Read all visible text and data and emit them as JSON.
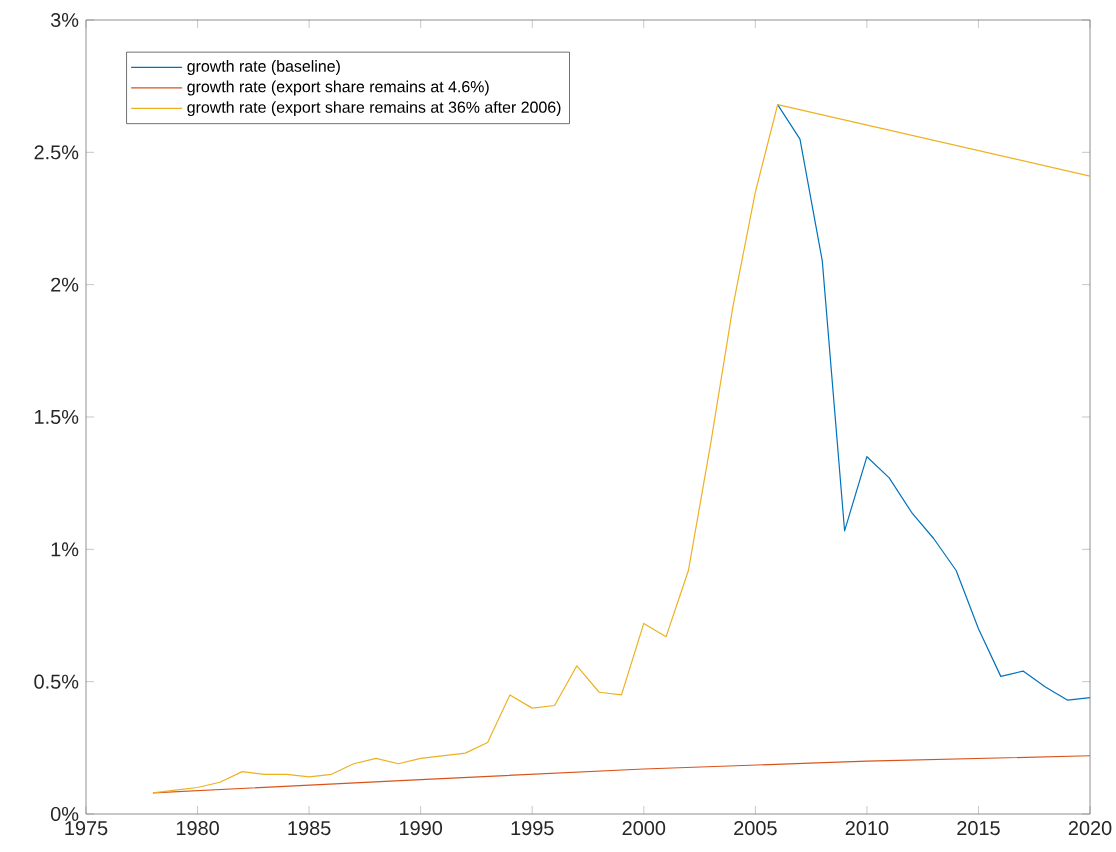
{
  "chart_data": {
    "type": "line",
    "xlim": [
      1975,
      2020
    ],
    "ylim": [
      0,
      3
    ],
    "xticks": [
      1975,
      1980,
      1985,
      1990,
      1995,
      2000,
      2005,
      2010,
      2015,
      2020
    ],
    "yticks": [
      {
        "value": 0,
        "label": "0%"
      },
      {
        "value": 0.5,
        "label": "0.5%"
      },
      {
        "value": 1,
        "label": "1%"
      },
      {
        "value": 1.5,
        "label": "1.5%"
      },
      {
        "value": 2,
        "label": "2%"
      },
      {
        "value": 2.5,
        "label": "2.5%"
      },
      {
        "value": 3,
        "label": "3%"
      }
    ],
    "legend": "top left",
    "grid": false,
    "series": [
      {
        "name": "growth rate (baseline)",
        "color": "#0072bd",
        "x": [
          2006,
          2007,
          2008,
          2009,
          2010,
          2011,
          2012,
          2013,
          2014,
          2015,
          2016,
          2017,
          2018,
          2019,
          2020
        ],
        "values": [
          2.68,
          2.55,
          2.09,
          1.07,
          1.35,
          1.27,
          1.14,
          1.04,
          0.92,
          0.7,
          0.52,
          0.54,
          0.48,
          0.43,
          0.44
        ]
      },
      {
        "name": "growth rate (export share remains at 4.6%)",
        "color": "#d95319",
        "x": [
          1978,
          1990,
          2000,
          2010,
          2020
        ],
        "values": [
          0.08,
          0.13,
          0.17,
          0.2,
          0.22
        ]
      },
      {
        "name": "growth rate (export share remains at 36% after 2006)",
        "color": "#edb120",
        "x": [
          1978,
          1979,
          1980,
          1981,
          1982,
          1983,
          1984,
          1985,
          1986,
          1987,
          1988,
          1989,
          1990,
          1991,
          1992,
          1993,
          1994,
          1995,
          1996,
          1997,
          1998,
          1999,
          2000,
          2001,
          2002,
          2003,
          2004,
          2005,
          2006,
          2020
        ],
        "values": [
          0.08,
          0.09,
          0.1,
          0.12,
          0.16,
          0.15,
          0.15,
          0.14,
          0.15,
          0.19,
          0.21,
          0.19,
          0.21,
          0.22,
          0.23,
          0.27,
          0.45,
          0.4,
          0.41,
          0.56,
          0.46,
          0.45,
          0.72,
          0.67,
          0.92,
          1.4,
          1.92,
          2.35,
          2.68,
          2.41
        ]
      }
    ]
  }
}
